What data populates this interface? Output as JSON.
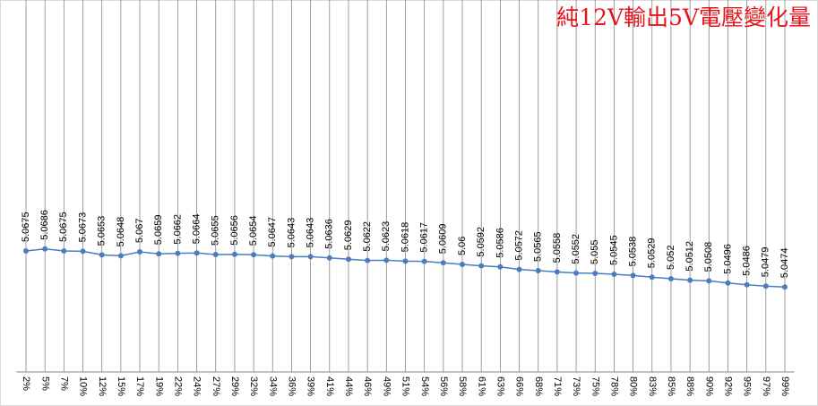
{
  "chart_data": {
    "type": "line",
    "title": "純12V輸出5V電壓變化量",
    "categories": [
      "2%",
      "5%",
      "7%",
      "10%",
      "12%",
      "15%",
      "17%",
      "19%",
      "22%",
      "24%",
      "27%",
      "29%",
      "32%",
      "34%",
      "36%",
      "39%",
      "41%",
      "44%",
      "46%",
      "49%",
      "51%",
      "54%",
      "56%",
      "58%",
      "61%",
      "63%",
      "66%",
      "68%",
      "71%",
      "73%",
      "75%",
      "78%",
      "80%",
      "83%",
      "85%",
      "88%",
      "90%",
      "92%",
      "95%",
      "97%",
      "99%"
    ],
    "values": [
      5.0675,
      5.0686,
      5.0675,
      5.0673,
      5.0653,
      5.0648,
      5.067,
      5.0659,
      5.0662,
      5.0664,
      5.0655,
      5.0656,
      5.0654,
      5.0647,
      5.0643,
      5.0643,
      5.0636,
      5.0629,
      5.0622,
      5.0623,
      5.0618,
      5.0617,
      5.0609,
      5.06,
      5.0592,
      5.0586,
      5.0572,
      5.0565,
      5.0558,
      5.0552,
      5.055,
      5.0545,
      5.0538,
      5.0529,
      5.052,
      5.0512,
      5.0508,
      5.0496,
      5.0486,
      5.0479,
      5.0474
    ],
    "color": "#4a7ebb",
    "title_color": "#e8141b",
    "ylim": [
      5.0,
      5.2
    ],
    "grid": true
  }
}
